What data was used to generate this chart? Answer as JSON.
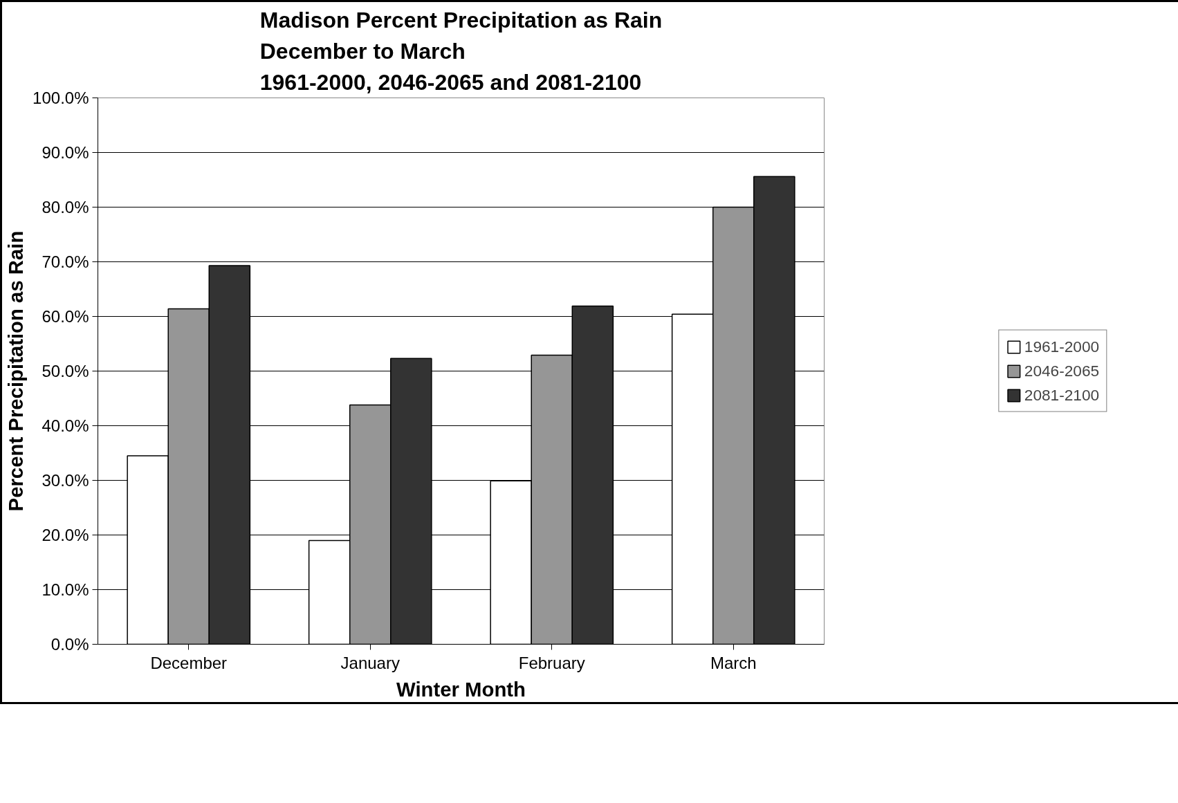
{
  "chart_data": {
    "type": "bar",
    "title": "Madison Percent Precipitation as Rain\nDecember to March\n1961-2000, 2046-2065 and 2081-2100",
    "xlabel": "Winter Month",
    "ylabel": "Percent Precipitation as Rain",
    "categories": [
      "December",
      "January",
      "February",
      "March"
    ],
    "series": [
      {
        "name": "1961-2000",
        "color": "#ffffff",
        "values": [
          34.5,
          19.0,
          29.9,
          60.4
        ]
      },
      {
        "name": "2046-2065",
        "color": "#969696",
        "values": [
          61.4,
          43.8,
          52.9,
          80.0
        ]
      },
      {
        "name": "2081-2100",
        "color": "#333333",
        "values": [
          69.3,
          52.3,
          61.9,
          85.6
        ]
      }
    ],
    "ylim": [
      0,
      100
    ],
    "yticks": [
      {
        "value": 0,
        "label": "0.0%"
      },
      {
        "value": 10,
        "label": "10.0%"
      },
      {
        "value": 20,
        "label": "20.0%"
      },
      {
        "value": 30,
        "label": "30.0%"
      },
      {
        "value": 40,
        "label": "40.0%"
      },
      {
        "value": 50,
        "label": "50.0%"
      },
      {
        "value": 60,
        "label": "60.0%"
      },
      {
        "value": 70,
        "label": "70.0%"
      },
      {
        "value": 80,
        "label": "80.0%"
      },
      {
        "value": 90,
        "label": "90.0%"
      },
      {
        "value": 100,
        "label": "100.0%"
      }
    ],
    "grid": "y",
    "legend": "right"
  }
}
